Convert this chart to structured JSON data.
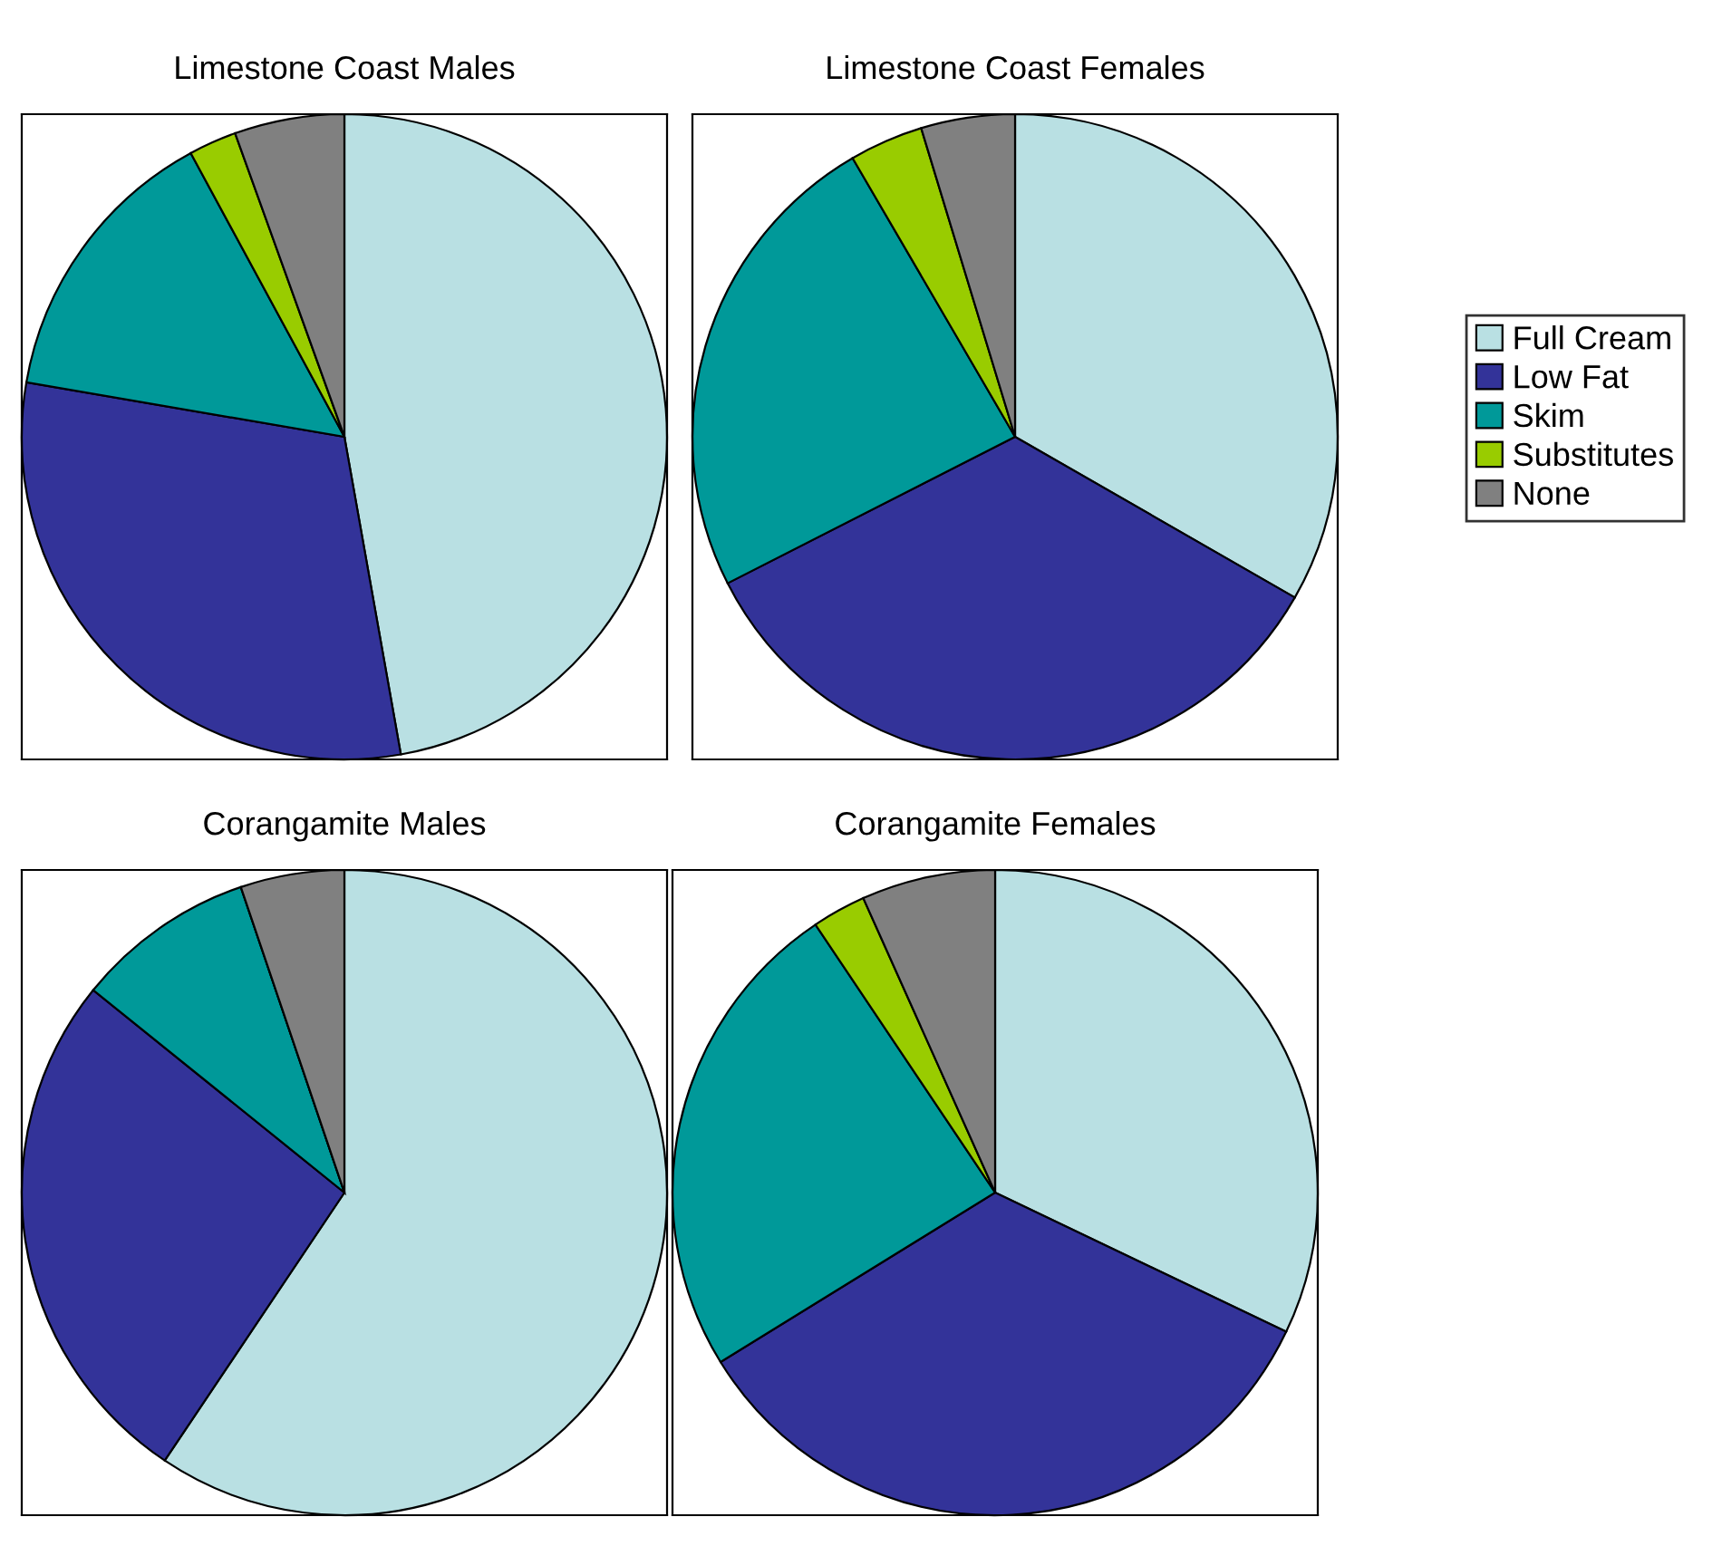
{
  "chart_data": [
    {
      "type": "pie",
      "title": "Limestone Coast Males",
      "categories": [
        "Full Cream",
        "Low Fat",
        "Skim",
        "Substitutes",
        "None"
      ],
      "values": [
        47.2,
        30.5,
        14.4,
        2.4,
        5.5
      ],
      "colors": [
        "#b9e0e3",
        "#333399",
        "#009999",
        "#99cc00",
        "#808080"
      ],
      "legend": "right"
    },
    {
      "type": "pie",
      "title": "Limestone Coast Females",
      "categories": [
        null,
        null,
        null,
        null,
        null
      ],
      "values": [
        33.3,
        34.2,
        24.1,
        3.7,
        4.7
      ],
      "colors": [
        "#b9e0e3",
        "#333399",
        "#009999",
        "#99cc00",
        "#808080"
      ]
    },
    {
      "type": "pie",
      "title": "Corangamite Males",
      "categories": [
        null,
        null,
        null,
        null,
        null
      ],
      "values": [
        59.4,
        26.4,
        9.0,
        0,
        5.2
      ],
      "colors": [
        "#b9e0e3",
        "#333399",
        "#009999",
        "#99cc00",
        "#808080"
      ]
    },
    {
      "type": "pie",
      "title": "Corangamite Females",
      "categories": [
        null,
        null,
        null,
        null,
        null
      ],
      "values": [
        32.1,
        34.1,
        24.4,
        2.7,
        6.7
      ],
      "colors": [
        "#b9e0e3",
        "#333399",
        "#009999",
        "#99cc00",
        "#808080"
      ]
    }
  ]
}
